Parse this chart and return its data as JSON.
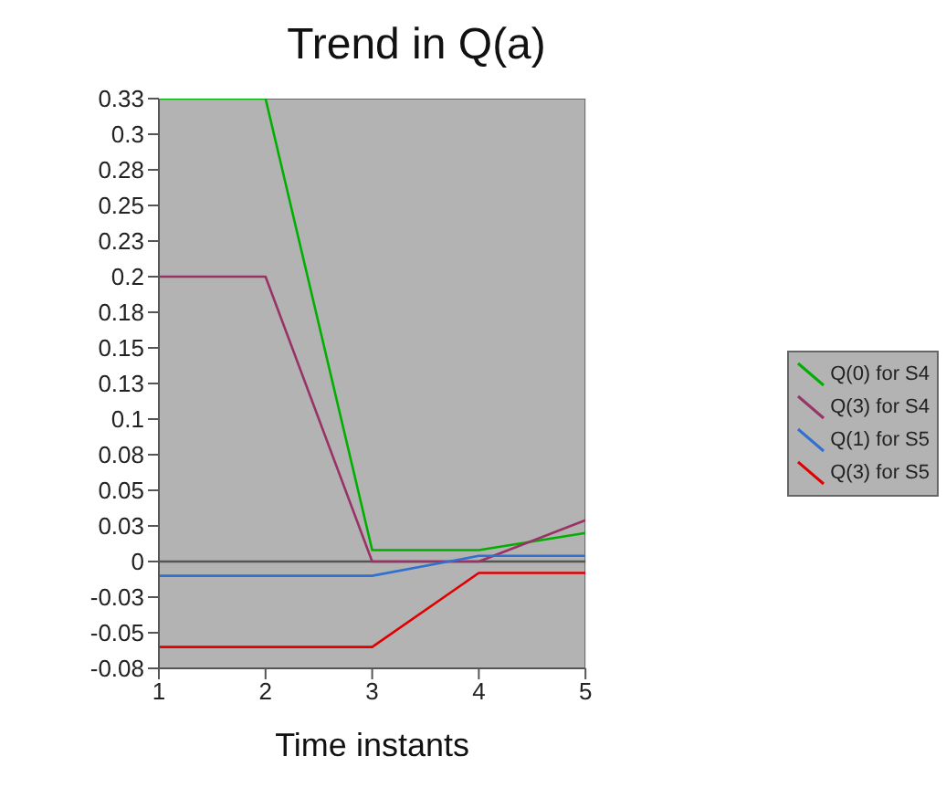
{
  "chart_data": {
    "type": "line",
    "title": "Trend in Q(a)",
    "xlabel": "Time instants",
    "x": [
      1,
      2,
      3,
      4,
      5
    ],
    "series": [
      {
        "name": "Q(0) for S4",
        "color": "#00b000",
        "values": [
          0.325,
          0.325,
          0.008,
          0.008,
          0.02
        ]
      },
      {
        "name": "Q(3) for S4",
        "color": "#993366",
        "values": [
          0.2,
          0.2,
          0,
          0,
          0.029
        ]
      },
      {
        "name": "Q(1) for S5",
        "color": "#3070d0",
        "values": [
          -0.01,
          -0.01,
          -0.01,
          0.004,
          0.004
        ]
      },
      {
        "name": "Q(3) for S5",
        "color": "#e00000",
        "values": [
          -0.06,
          -0.06,
          -0.06,
          -0.008,
          -0.008
        ]
      }
    ],
    "xlim": [
      1,
      5
    ],
    "xticks": [
      1,
      2,
      3,
      4,
      5
    ],
    "ylim": [
      -0.075,
      0.325
    ],
    "yticks": [
      {
        "value": -0.075,
        "label": "-0.08"
      },
      {
        "value": -0.05,
        "label": "-0.05"
      },
      {
        "value": -0.025,
        "label": "-0.03"
      },
      {
        "value": 0,
        "label": "0"
      },
      {
        "value": 0.025,
        "label": "0.03"
      },
      {
        "value": 0.05,
        "label": "0.05"
      },
      {
        "value": 0.075,
        "label": "0.08"
      },
      {
        "value": 0.1,
        "label": "0.1"
      },
      {
        "value": 0.125,
        "label": "0.13"
      },
      {
        "value": 0.15,
        "label": "0.15"
      },
      {
        "value": 0.175,
        "label": "0.18"
      },
      {
        "value": 0.2,
        "label": "0.2"
      },
      {
        "value": 0.225,
        "label": "0.23"
      },
      {
        "value": 0.25,
        "label": "0.25"
      },
      {
        "value": 0.275,
        "label": "0.28"
      },
      {
        "value": 0.3,
        "label": "0.3"
      },
      {
        "value": 0.325,
        "label": "0.33"
      }
    ],
    "ref_lines": [
      {
        "axis": "y",
        "value": 0,
        "color": "#555555"
      }
    ],
    "grid": false,
    "legend": "right",
    "marker": "none",
    "line_style": "solid"
  }
}
